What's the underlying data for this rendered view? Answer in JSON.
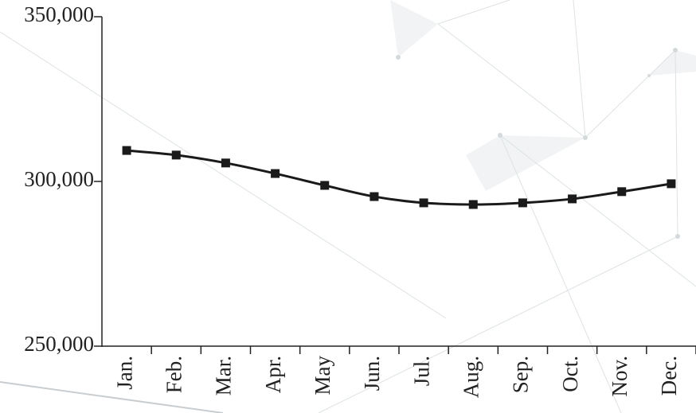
{
  "chart_data": {
    "type": "line",
    "categories": [
      "Jan.",
      "Feb.",
      "Mar.",
      "Apr.",
      "May",
      "Jun.",
      "Jul.",
      "Aug.",
      "Sep.",
      "Oct.",
      "Nov.",
      "Dec."
    ],
    "series": [
      {
        "color": "#1a1a1a",
        "values": [
          309400,
          308000,
          305600,
          302400,
          298800,
          295400,
          293500,
          293000,
          293500,
          294700,
          296900,
          299300
        ]
      }
    ],
    "ylim": [
      250000,
      350000
    ],
    "yticks": [
      {
        "value": 250000,
        "label": "250,000"
      },
      {
        "value": 300000,
        "label": "300,000"
      },
      {
        "value": 350000,
        "label": "350,000"
      }
    ],
    "grid": false
  }
}
